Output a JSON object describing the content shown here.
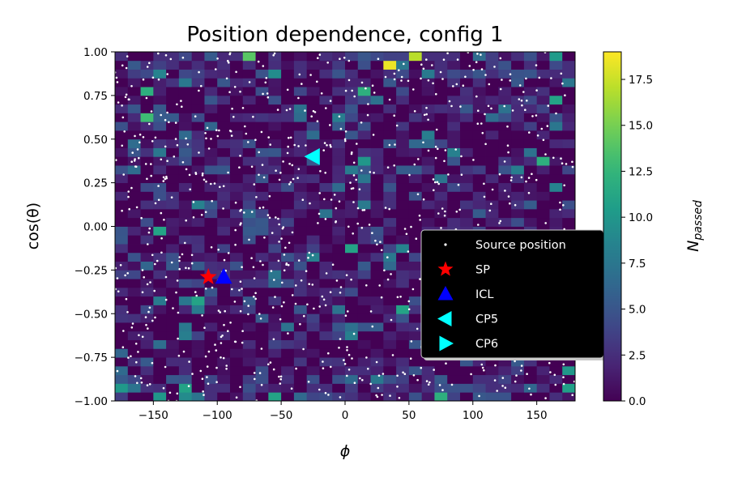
{
  "chart_data": {
    "type": "heatmap",
    "title": "Position dependence, config 1",
    "xlabel": "ϕ",
    "ylabel": "cos(θ)",
    "xlim": [
      -180,
      180
    ],
    "ylim": [
      -1,
      1
    ],
    "x_bins": 36,
    "y_bins": 40,
    "x_ticks": [
      -150,
      -100,
      -50,
      0,
      50,
      100,
      150
    ],
    "x_tick_labels": [
      "−150",
      "−100",
      "−50",
      "0",
      "50",
      "100",
      "150"
    ],
    "y_ticks": [
      -1,
      -0.75,
      -0.5,
      -0.25,
      0,
      0.25,
      0.5,
      0.75,
      1
    ],
    "y_tick_labels": [
      "−1.00",
      "−0.75",
      "−0.50",
      "−0.25",
      "0.00",
      "0.25",
      "0.50",
      "0.75",
      "1.00"
    ],
    "colorbar": {
      "label": "N",
      "label_sub": "passed",
      "range": [
        0,
        19
      ],
      "ticks": [
        0,
        2.5,
        5,
        7.5,
        10,
        12.5,
        15,
        17.5
      ],
      "tick_labels": [
        "0.0",
        "2.5",
        "5.0",
        "7.5",
        "10.0",
        "12.5",
        "15.0",
        "17.5"
      ],
      "colormap": "viridis"
    },
    "highlighted_bins": [
      {
        "phi": 35,
        "cos_theta": 0.9,
        "value": 18.5
      },
      {
        "phi": 55,
        "cos_theta": 0.975,
        "value": 17
      },
      {
        "phi": -75,
        "cos_theta": 0.975,
        "value": 14
      },
      {
        "phi": -155,
        "cos_theta": 0.625,
        "value": 13
      },
      {
        "phi": -160,
        "cos_theta": 0.775,
        "value": 12
      },
      {
        "phi": 15,
        "cos_theta": 0.75,
        "value": 12
      },
      {
        "phi": 155,
        "cos_theta": 0.375,
        "value": 12
      },
      {
        "phi": 75,
        "cos_theta": -0.975,
        "value": 12
      },
      {
        "phi": -150,
        "cos_theta": -0.025,
        "value": 11
      },
      {
        "phi": 5,
        "cos_theta": -0.125,
        "value": 11
      },
      {
        "phi": -115,
        "cos_theta": -0.425,
        "value": 11
      },
      {
        "phi": 45,
        "cos_theta": -0.5,
        "value": 11
      },
      {
        "phi": 165,
        "cos_theta": 0.725,
        "value": 11
      },
      {
        "phi": -55,
        "cos_theta": -0.975,
        "value": 11
      },
      {
        "phi": -145,
        "cos_theta": -0.975,
        "value": 10
      },
      {
        "phi": 170,
        "cos_theta": -0.825,
        "value": 10
      },
      {
        "phi": 10,
        "cos_theta": 0.35,
        "value": 10
      }
    ],
    "source_position_count_approx": 900,
    "markers": [
      {
        "name": "SP",
        "phi": -107,
        "cos_theta": -0.29,
        "symbol": "star",
        "color": "#ff0000"
      },
      {
        "name": "ICL",
        "phi": -95,
        "cos_theta": -0.29,
        "symbol": "triangle-up",
        "color": "#0000ff"
      },
      {
        "name": "CP5",
        "phi": -25,
        "cos_theta": 0.4,
        "symbol": "triangle-left",
        "color": "#00ffff"
      }
    ],
    "legend": {
      "placement": "center-right",
      "entries": [
        {
          "label": "Source position",
          "symbol": "dot",
          "color": "#ffffff"
        },
        {
          "label": "SP",
          "symbol": "star",
          "color": "#ff0000"
        },
        {
          "label": "ICL",
          "symbol": "triangle-up",
          "color": "#0000ff"
        },
        {
          "label": "CP5",
          "symbol": "triangle-left",
          "color": "#00ffff"
        },
        {
          "label": "CP6",
          "symbol": "triangle-right",
          "color": "#00ffff"
        }
      ]
    }
  }
}
